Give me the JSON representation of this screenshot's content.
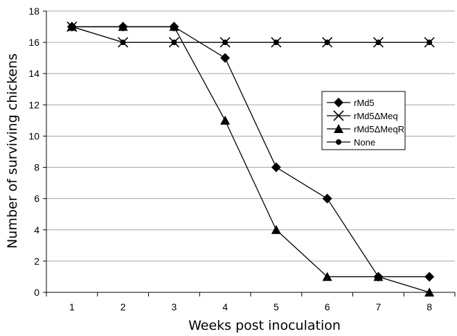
{
  "chart_data": {
    "type": "line",
    "title": "",
    "xlabel": "Weeks post inoculation",
    "ylabel": "Number of surviving chickens",
    "x": [
      1,
      2,
      3,
      4,
      5,
      6,
      7,
      8
    ],
    "xlim": [
      0.5,
      8.5
    ],
    "ylim": [
      0,
      18
    ],
    "yticks": [
      0,
      2,
      4,
      6,
      8,
      10,
      12,
      14,
      16,
      18
    ],
    "grid": "horizontal",
    "legend_position": "right",
    "series": [
      {
        "name": "rMd5",
        "marker": "diamond",
        "values": [
          17,
          17,
          17,
          15,
          8,
          6,
          1,
          1
        ]
      },
      {
        "name": "rMd5ΔMeq",
        "marker": "x",
        "values": [
          17,
          16,
          16,
          16,
          16,
          16,
          16,
          16
        ]
      },
      {
        "name": "rMd5ΔMeqR",
        "marker": "triangle",
        "values": [
          17,
          17,
          17,
          11,
          4,
          1,
          1,
          0
        ]
      },
      {
        "name": "None",
        "marker": "circle",
        "values": [
          17,
          16,
          16,
          16,
          16,
          16,
          16,
          16
        ]
      }
    ],
    "colors": {
      "line": "#000000",
      "grid": "#a6a6a6",
      "background": "#ffffff"
    }
  }
}
